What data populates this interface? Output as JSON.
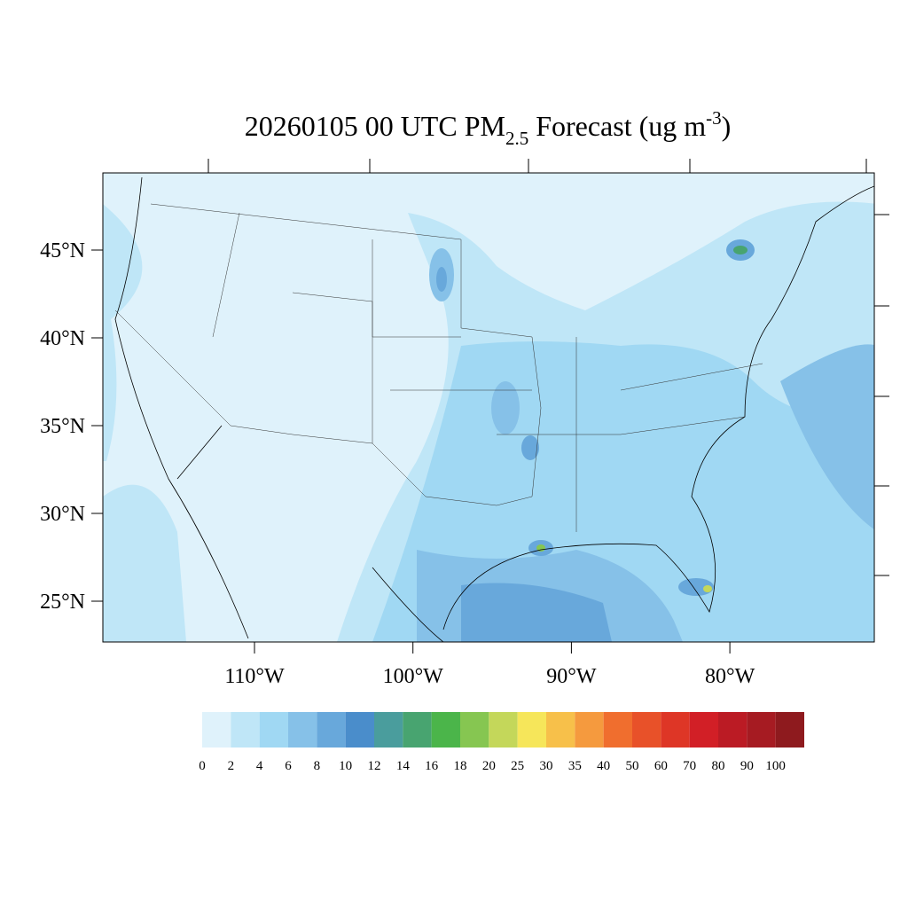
{
  "title": {
    "main": "20260105 00 UTC PM",
    "sub": "2.5",
    "rest": " Forecast (ug m",
    "sup": "-3",
    "end": ")"
  },
  "lat_ticks": [
    {
      "value": 45,
      "label": "45°N"
    },
    {
      "value": 40,
      "label": "40°N"
    },
    {
      "value": 35,
      "label": "35°N"
    },
    {
      "value": 30,
      "label": "30°N"
    },
    {
      "value": 25,
      "label": "25°N"
    }
  ],
  "lon_ticks": [
    {
      "value": -110,
      "label": "110°W"
    },
    {
      "value": -100,
      "label": "100°W"
    },
    {
      "value": -90,
      "label": "90°W"
    },
    {
      "value": -80,
      "label": "80°W"
    }
  ],
  "colorbar": {
    "levels": [
      0,
      2,
      4,
      6,
      8,
      10,
      12,
      14,
      16,
      18,
      20,
      25,
      30,
      35,
      40,
      50,
      60,
      70,
      80,
      90,
      100
    ],
    "colors": [
      "#dff2fb",
      "#bfe6f7",
      "#a0d8f3",
      "#86c1e8",
      "#68a8db",
      "#4a8dcb",
      "#4a9d9d",
      "#48a470",
      "#4bb54a",
      "#86c651",
      "#c4d75a",
      "#f6e65a",
      "#f7c04a",
      "#f59a3e",
      "#f06e2e",
      "#e85129",
      "#de3626",
      "#d21f26",
      "#bb1b24",
      "#a61b22",
      "#8e1a1e"
    ]
  }
}
